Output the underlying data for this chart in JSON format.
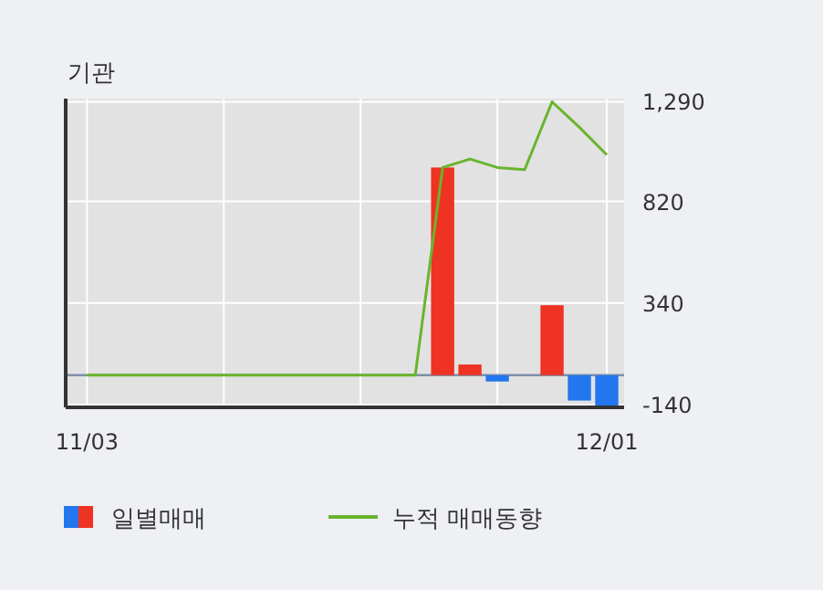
{
  "chart_data": {
    "type": "bar",
    "title": "기관",
    "categories": [
      "11/03",
      null,
      null,
      null,
      null,
      null,
      null,
      null,
      null,
      null,
      null,
      null,
      null,
      null,
      null,
      null,
      null,
      null,
      null,
      "12/01"
    ],
    "series": [
      {
        "name": "일별매매",
        "colors": [
          "#ee3322",
          "#ee3322",
          "#ee3322",
          "#ee3322",
          "#ee3322",
          "#ee3322",
          "#ee3322",
          "#ee3322",
          "#ee3322",
          "#ee3322",
          "#ee3322",
          "#ee3322",
          "#ee3322",
          "#ee3322",
          "#ee3322",
          "#2277ee",
          "#ee3322",
          "#ee3322",
          "#2277ee",
          "#2277ee"
        ],
        "values": [
          0,
          0,
          0,
          0,
          0,
          0,
          0,
          0,
          0,
          0,
          0,
          0,
          0,
          980,
          50,
          -30,
          0,
          330,
          -120,
          -150
        ]
      },
      {
        "name": "누적 매매동향",
        "type": "line",
        "color": "#6ab42d",
        "values": [
          0,
          0,
          0,
          0,
          0,
          0,
          0,
          0,
          0,
          0,
          0,
          0,
          0,
          980,
          1020,
          980,
          970,
          1290,
          1170,
          1040
        ]
      }
    ],
    "ylim": [
      -152,
      1305
    ],
    "yticks": [
      -140,
      340,
      820,
      {
        "value": 1290,
        "label": "1,290"
      }
    ],
    "grid": true,
    "legend": "bottom"
  }
}
